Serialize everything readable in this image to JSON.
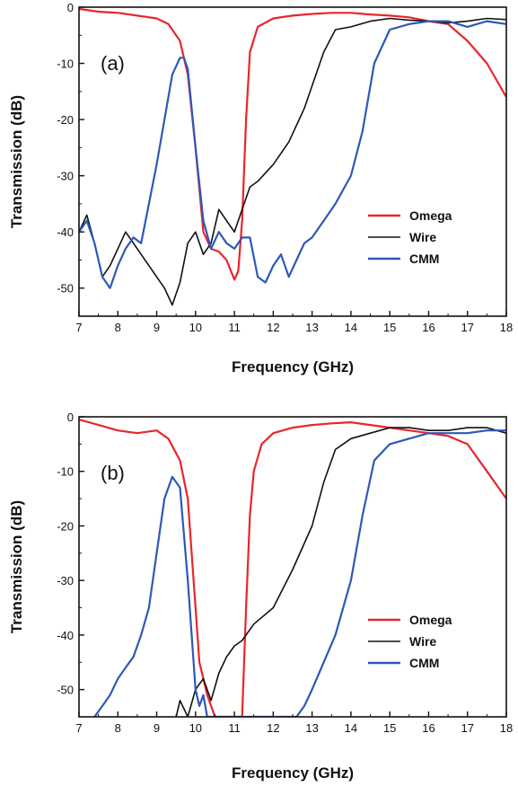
{
  "chart_data": [
    {
      "type": "line",
      "panel_label": "(a)",
      "xlabel": "Frequency (GHz)",
      "ylabel": "Transmission (dB)",
      "xlim": [
        7,
        18
      ],
      "ylim": [
        -55,
        0
      ],
      "xticks": [
        7,
        8,
        9,
        10,
        11,
        12,
        13,
        14,
        15,
        16,
        17,
        18
      ],
      "yticks": [
        0,
        -10,
        -20,
        -30,
        -40,
        -50
      ],
      "grid": false,
      "legend_position": "right",
      "series": [
        {
          "name": "Omega",
          "color": "#e8262c",
          "x": [
            7.0,
            7.5,
            8.0,
            8.5,
            9.0,
            9.3,
            9.6,
            9.8,
            10.0,
            10.2,
            10.4,
            10.6,
            10.8,
            11.0,
            11.1,
            11.2,
            11.3,
            11.4,
            11.6,
            12.0,
            12.5,
            13.0,
            13.5,
            14.0,
            14.5,
            15.0,
            15.5,
            16.0,
            16.5,
            17.0,
            17.5,
            18.0
          ],
          "y": [
            -0.3,
            -0.8,
            -1.0,
            -1.5,
            -2.0,
            -3.0,
            -6.0,
            -12.0,
            -25.0,
            -40.0,
            -43.0,
            -43.5,
            -45.0,
            -48.5,
            -47.0,
            -38.0,
            -20.0,
            -8.0,
            -3.5,
            -2.0,
            -1.5,
            -1.2,
            -1.0,
            -1.0,
            -1.3,
            -1.5,
            -1.8,
            -2.5,
            -3.0,
            -6.0,
            -10.0,
            -16.0
          ]
        },
        {
          "name": "Wire",
          "color": "#111111",
          "x": [
            7.0,
            7.2,
            7.4,
            7.6,
            7.8,
            8.0,
            8.2,
            8.4,
            8.6,
            8.8,
            9.0,
            9.2,
            9.4,
            9.6,
            9.8,
            10.0,
            10.2,
            10.4,
            10.6,
            10.8,
            11.0,
            11.2,
            11.4,
            11.6,
            12.0,
            12.4,
            12.8,
            13.0,
            13.3,
            13.6,
            14.0,
            14.5,
            15.0,
            15.5,
            16.0,
            16.5,
            17.0,
            17.5,
            18.0
          ],
          "y": [
            -40.0,
            -37.0,
            -42.0,
            -48.0,
            -46.0,
            -43.0,
            -40.0,
            -42.0,
            -44.0,
            -46.0,
            -48.0,
            -50.0,
            -53.0,
            -49.0,
            -42.0,
            -40.0,
            -44.0,
            -42.0,
            -36.0,
            -38.0,
            -40.0,
            -36.0,
            -32.0,
            -31.0,
            -28.0,
            -24.0,
            -18.0,
            -14.0,
            -8.0,
            -4.0,
            -3.5,
            -2.5,
            -2.0,
            -2.3,
            -2.5,
            -2.8,
            -2.5,
            -2.0,
            -2.2
          ]
        },
        {
          "name": "CMM",
          "color": "#2e58b8",
          "x": [
            7.0,
            7.2,
            7.4,
            7.6,
            7.8,
            8.0,
            8.2,
            8.4,
            8.6,
            8.8,
            9.0,
            9.2,
            9.4,
            9.6,
            9.7,
            9.8,
            10.0,
            10.2,
            10.4,
            10.6,
            10.8,
            11.0,
            11.2,
            11.4,
            11.6,
            11.8,
            12.0,
            12.2,
            12.4,
            12.6,
            12.8,
            13.0,
            13.3,
            13.6,
            14.0,
            14.3,
            14.6,
            15.0,
            15.5,
            16.0,
            16.5,
            17.0,
            17.5,
            18.0
          ],
          "y": [
            -40.0,
            -38.0,
            -42.0,
            -48.0,
            -50.0,
            -46.0,
            -43.0,
            -41.0,
            -42.0,
            -35.0,
            -28.0,
            -20.0,
            -12.0,
            -9.0,
            -9.0,
            -11.0,
            -25.0,
            -38.0,
            -43.0,
            -40.0,
            -42.0,
            -43.0,
            -41.0,
            -41.0,
            -48.0,
            -49.0,
            -46.0,
            -44.0,
            -48.0,
            -45.0,
            -42.0,
            -41.0,
            -38.0,
            -35.0,
            -30.0,
            -22.0,
            -10.0,
            -4.0,
            -3.0,
            -2.5,
            -2.5,
            -3.5,
            -2.5,
            -3.0
          ]
        }
      ]
    },
    {
      "type": "line",
      "panel_label": "(b)",
      "xlabel": "Frequency (GHz)",
      "ylabel": "Transmission (dB)",
      "xlim": [
        7,
        18
      ],
      "ylim": [
        -55,
        0
      ],
      "xticks": [
        7,
        8,
        9,
        10,
        11,
        12,
        13,
        14,
        15,
        16,
        17,
        18
      ],
      "yticks": [
        0,
        -10,
        -20,
        -30,
        -40,
        -50
      ],
      "grid": false,
      "legend_position": "right",
      "series": [
        {
          "name": "Omega",
          "color": "#e8262c",
          "x": [
            7.0,
            7.5,
            8.0,
            8.5,
            9.0,
            9.3,
            9.6,
            9.8,
            10.0,
            10.1,
            10.2,
            10.3,
            10.5,
            11.0,
            11.2,
            11.3,
            11.4,
            11.5,
            11.7,
            12.0,
            12.5,
            13.0,
            13.5,
            14.0,
            14.5,
            15.0,
            15.5,
            16.0,
            16.5,
            17.0,
            17.5,
            18.0
          ],
          "y": [
            -0.5,
            -1.5,
            -2.5,
            -3.0,
            -2.5,
            -4.0,
            -8.0,
            -15.0,
            -35.0,
            -45.0,
            -48.0,
            -51.0,
            -55.0,
            -55.0,
            -55.0,
            -35.0,
            -18.0,
            -10.0,
            -5.0,
            -3.0,
            -2.0,
            -1.5,
            -1.2,
            -1.0,
            -1.5,
            -2.0,
            -2.5,
            -3.0,
            -3.5,
            -5.0,
            -10.0,
            -15.0
          ]
        },
        {
          "name": "Wire",
          "color": "#111111",
          "x": [
            9.5,
            9.6,
            9.8,
            10.0,
            10.2,
            10.4,
            10.6,
            10.8,
            11.0,
            11.2,
            11.5,
            12.0,
            12.5,
            13.0,
            13.3,
            13.6,
            14.0,
            14.5,
            15.0,
            15.5,
            16.0,
            16.5,
            17.0,
            17.5,
            18.0
          ],
          "y": [
            -55.0,
            -52.0,
            -55.0,
            -50.0,
            -48.0,
            -52.0,
            -47.0,
            -44.0,
            -42.0,
            -41.0,
            -38.0,
            -35.0,
            -28.0,
            -20.0,
            -12.0,
            -6.0,
            -4.0,
            -3.0,
            -2.0,
            -2.0,
            -2.5,
            -2.5,
            -2.0,
            -2.0,
            -3.0
          ]
        },
        {
          "name": "CMM",
          "color": "#2e58b8",
          "x": [
            7.4,
            7.6,
            7.8,
            8.0,
            8.2,
            8.4,
            8.6,
            8.8,
            9.0,
            9.2,
            9.4,
            9.6,
            9.8,
            10.0,
            10.1,
            10.2,
            10.3,
            12.6,
            12.8,
            13.0,
            13.3,
            13.6,
            14.0,
            14.3,
            14.6,
            15.0,
            15.5,
            16.0,
            16.5,
            17.0,
            17.5,
            18.0
          ],
          "y": [
            -55.0,
            -53.0,
            -51.0,
            -48.0,
            -46.0,
            -44.0,
            -40.0,
            -35.0,
            -25.0,
            -15.0,
            -11.0,
            -13.0,
            -30.0,
            -50.0,
            -53.0,
            -51.0,
            -55.0,
            -55.0,
            -53.0,
            -50.0,
            -45.0,
            -40.0,
            -30.0,
            -18.0,
            -8.0,
            -5.0,
            -4.0,
            -3.0,
            -3.0,
            -3.0,
            -2.5,
            -2.5
          ]
        }
      ]
    }
  ]
}
